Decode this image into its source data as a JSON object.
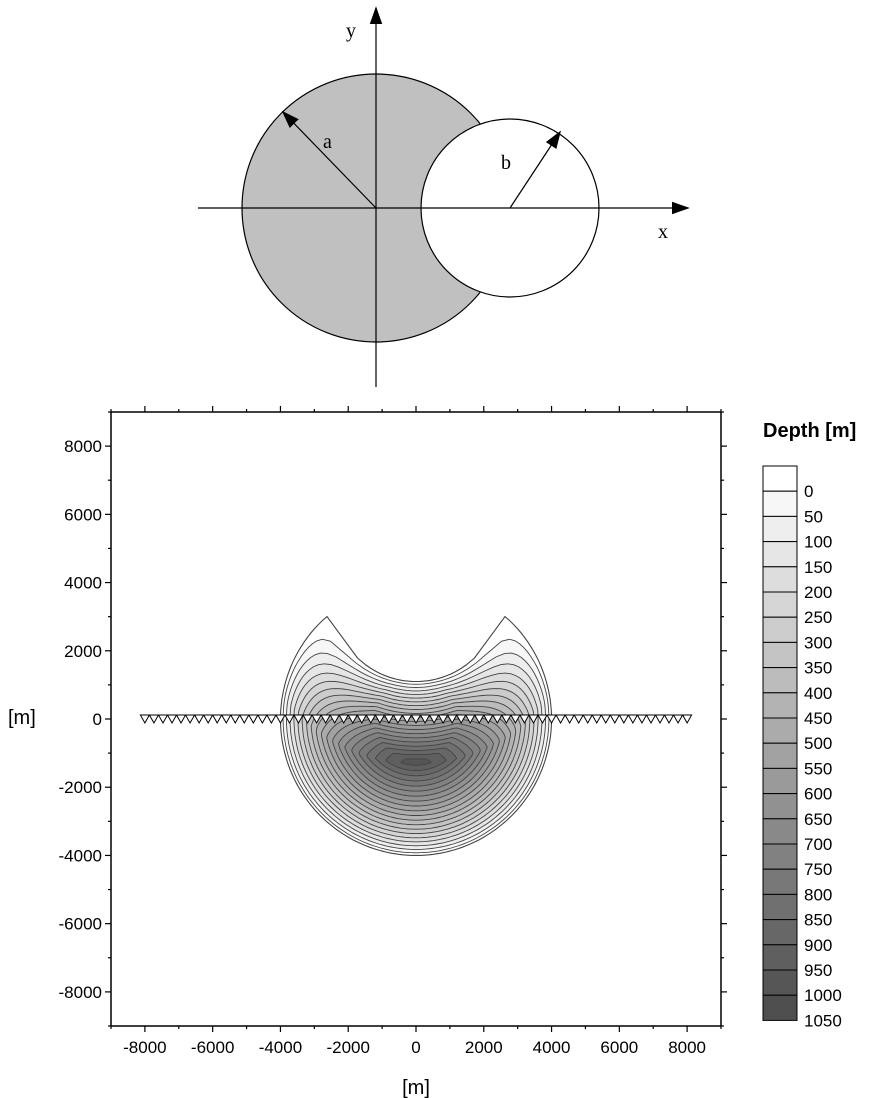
{
  "schematic": {
    "axis_x_label": "x",
    "axis_y_label": "y",
    "radius_a_label": "a",
    "radius_b_label": "b",
    "colors": {
      "large_disk": "#c0c0c0",
      "small_disk": "#ffffff"
    }
  },
  "chart_data": {
    "type": "contour",
    "xlabel": "[m]",
    "ylabel": "[m]",
    "xlim": [
      -9000,
      9000
    ],
    "ylim": [
      -9000,
      9000
    ],
    "xticks": [
      "-8000",
      "-6000",
      "-4000",
      "-2000",
      "0",
      "2000",
      "4000",
      "6000",
      "8000"
    ],
    "yticks": [
      "8000",
      "6000",
      "4000",
      "2000",
      "0",
      "-2000",
      "-4000",
      "-6000",
      "-8000"
    ],
    "x_tick_values": [
      -8000,
      -6000,
      -4000,
      -2000,
      0,
      2000,
      4000,
      6000,
      8000
    ],
    "y_tick_values": [
      8000,
      6000,
      4000,
      2000,
      0,
      -2000,
      -4000,
      -6000,
      -8000
    ],
    "basin": {
      "large_circle": {
        "center": [
          0,
          0
        ],
        "radius": 4000
      },
      "cutout_circle": {
        "center": [
          0,
          3600
        ],
        "radius": 2500
      },
      "deepest_point": [
        0,
        -1200
      ],
      "max_depth": 1050
    },
    "stations": {
      "y": 0,
      "x_start": -8000,
      "x_end": 8000,
      "count": 61
    },
    "legend": {
      "title": "Depth [m]",
      "levels": [
        "0",
        "50",
        "100",
        "150",
        "200",
        "250",
        "300",
        "350",
        "400",
        "450",
        "500",
        "550",
        "600",
        "650",
        "700",
        "750",
        "800",
        "850",
        "900",
        "950",
        "1000",
        "1050"
      ],
      "level_values": [
        0,
        50,
        100,
        150,
        200,
        250,
        300,
        350,
        400,
        450,
        500,
        550,
        600,
        650,
        700,
        750,
        800,
        850,
        900,
        950,
        1000,
        1050
      ]
    }
  }
}
